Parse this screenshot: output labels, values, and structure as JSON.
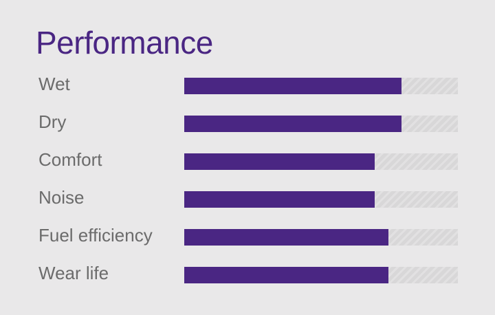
{
  "panel": {
    "title": "Performance"
  },
  "colors": {
    "accent": "#4a2683",
    "label": "#6b6b6b",
    "background": "#e9e8e9",
    "track": "#d8d7d8"
  },
  "chart_data": {
    "type": "bar",
    "orientation": "horizontal",
    "categories": [
      "Wet",
      "Dry",
      "Comfort",
      "Noise",
      "Fuel efficiency",
      "Wear life"
    ],
    "values": [
      0.794,
      0.794,
      0.696,
      0.696,
      0.746,
      0.746
    ],
    "xlim": [
      0,
      1
    ],
    "grid": false,
    "legend": "none"
  }
}
